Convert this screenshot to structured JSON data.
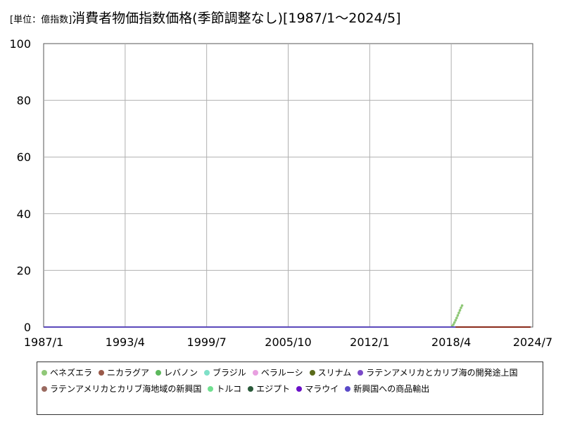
{
  "title": {
    "unit": "[単位：億指数]",
    "main": "消費者物価指数価格(季節調整なし)[1987/1～2024/5]"
  },
  "chart_data": {
    "type": "line",
    "title": "消費者物価指数価格(季節調整なし)[1987/1～2024/5]",
    "unit": "[単位：億指数]",
    "xlabel": "",
    "ylabel": "",
    "ylim": [
      0,
      100
    ],
    "yticks": [
      "0",
      "20",
      "40",
      "60",
      "80",
      "100"
    ],
    "xticks": [
      "1987/1",
      "1993/4",
      "1999/7",
      "2005/10",
      "2012/1",
      "2018/4",
      "2024/7"
    ],
    "xlim": [
      "1987/1",
      "2024/7"
    ],
    "grid": true,
    "legend_position": "bottom",
    "series": [
      {
        "name": "ベネズエラ",
        "color": "#90c878",
        "points": [
          [
            "1987/1",
            0
          ],
          [
            "2018/4",
            0
          ],
          [
            "2018/5",
            0.4
          ],
          [
            "2018/6",
            0.9
          ],
          [
            "2018/7",
            1.6
          ],
          [
            "2018/8",
            2.4
          ],
          [
            "2018/9",
            3.2
          ],
          [
            "2018/10",
            4.1
          ],
          [
            "2018/11",
            5.0
          ],
          [
            "2018/12",
            5.9
          ],
          [
            "2019/1",
            6.8
          ],
          [
            "2019/2",
            7.6
          ]
        ]
      },
      {
        "name": "ニカラグア",
        "color": "#9a5a4a",
        "points": [
          [
            "1987/1",
            0
          ],
          [
            "2024/5",
            0
          ]
        ]
      },
      {
        "name": "レバノン",
        "color": "#5cb85c",
        "points": [
          [
            "1987/1",
            0
          ],
          [
            "2024/5",
            0
          ]
        ]
      },
      {
        "name": "ブラジル",
        "color": "#7fe0c8",
        "points": [
          [
            "1987/1",
            0
          ],
          [
            "2024/5",
            0
          ]
        ]
      },
      {
        "name": "ベラルーシ",
        "color": "#e8a0e0",
        "points": [
          [
            "1987/1",
            0
          ],
          [
            "2024/5",
            0
          ]
        ]
      },
      {
        "name": "スリナム",
        "color": "#5a6a1a",
        "points": [
          [
            "1987/1",
            0
          ],
          [
            "2024/5",
            0
          ]
        ]
      },
      {
        "name": "ラテンアメリカとカリブ海の開発途上国",
        "color": "#7a4ac8",
        "points": [
          [
            "1987/1",
            0
          ],
          [
            "2024/5",
            0
          ]
        ]
      },
      {
        "name": "ラテンアメリカとカリブ海地域の新興国",
        "color": "#9a6a60",
        "points": [
          [
            "1987/1",
            0
          ],
          [
            "2024/5",
            0
          ]
        ]
      },
      {
        "name": "トルコ",
        "color": "#70e090",
        "points": [
          [
            "1987/1",
            0
          ],
          [
            "2024/5",
            0
          ]
        ]
      },
      {
        "name": "エジプト",
        "color": "#2a5a3a",
        "points": [
          [
            "1987/1",
            0
          ],
          [
            "2024/5",
            0
          ]
        ]
      },
      {
        "name": "マラウイ",
        "color": "#6a10c8",
        "points": [
          [
            "1987/1",
            0
          ],
          [
            "2024/5",
            0
          ]
        ]
      },
      {
        "name": "新興国への商品輸出",
        "color": "#5a4ac8",
        "points": [
          [
            "1987/1",
            0
          ],
          [
            "2024/5",
            0
          ]
        ]
      }
    ]
  }
}
